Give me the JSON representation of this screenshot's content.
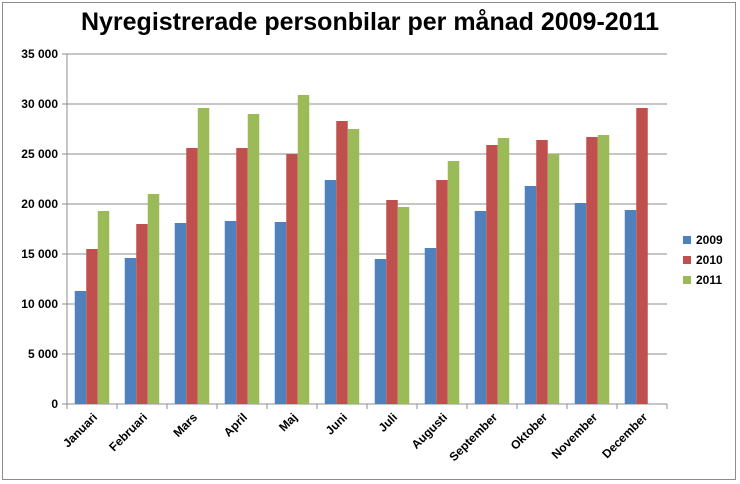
{
  "chart_data": {
    "type": "bar",
    "title": "Nyregistrerade personbilar per månad 2009-2011",
    "categories": [
      "Januari",
      "Februari",
      "Mars",
      "April",
      "Maj",
      "Juni",
      "Juli",
      "Augusti",
      "September",
      "Oktober",
      "November",
      "December"
    ],
    "series": [
      {
        "name": "2009",
        "color": "#4f81bd",
        "values": [
          11300,
          14600,
          18100,
          18300,
          18200,
          22400,
          14500,
          15600,
          19300,
          21800,
          20100,
          19400
        ]
      },
      {
        "name": "2010",
        "color": "#c0504d",
        "values": [
          15500,
          18000,
          25600,
          25600,
          25000,
          28300,
          20400,
          22400,
          25900,
          26400,
          26700,
          29600
        ]
      },
      {
        "name": "2011",
        "color": "#9bbb59",
        "values": [
          19300,
          21000,
          29600,
          29000,
          30900,
          27500,
          19700,
          24300,
          26600,
          25000,
          26900,
          null
        ]
      }
    ],
    "ylim": [
      0,
      35000
    ],
    "yticks": [
      "0",
      "5 000",
      "10 000",
      "15 000",
      "20 000",
      "25 000",
      "30 000",
      "35 000"
    ],
    "grid": true,
    "legend_position": "right"
  }
}
